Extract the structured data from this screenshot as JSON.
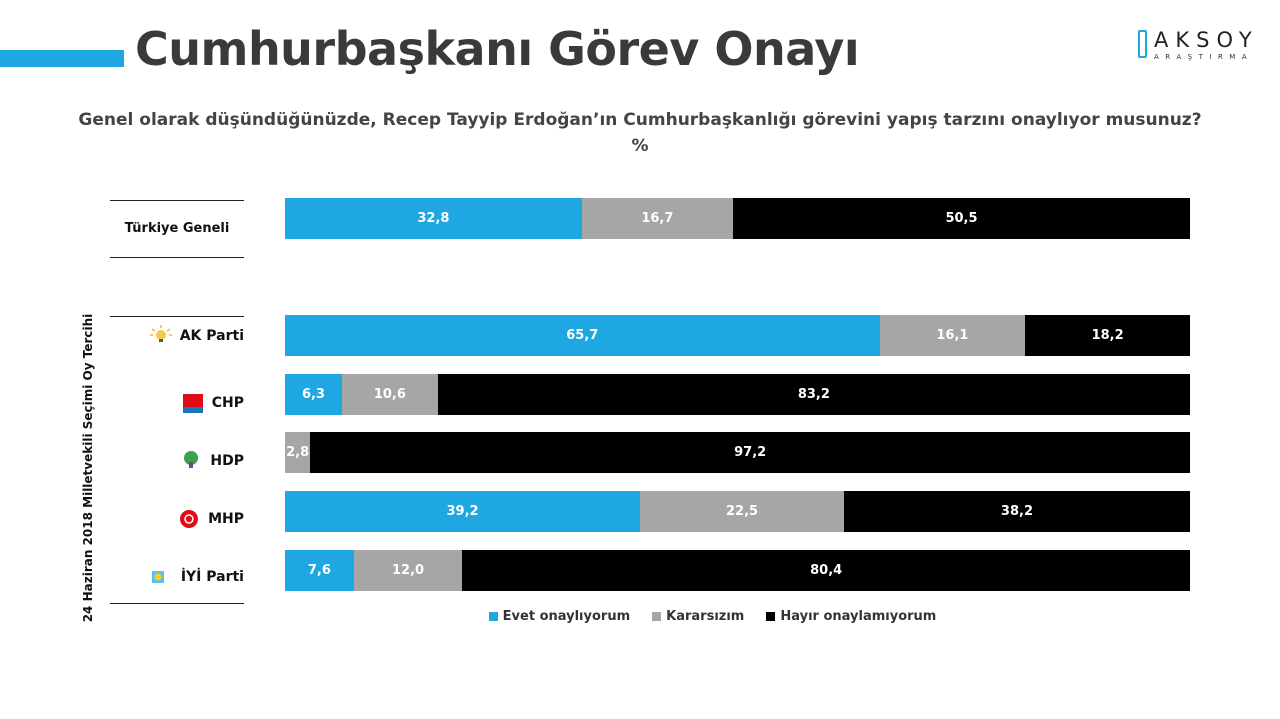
{
  "title": "Cumhurbaşkanı Görev Onayı",
  "logo": {
    "main": "AKSOY",
    "sub": "ARAŞTIRMA"
  },
  "question": "Genel olarak düşündüğünüzde, Recep Tayyip Erdoğan’ın Cumhurbaşkanlığı görevini yapış tarzını onaylıyor musunuz?",
  "unit": "%",
  "group_label": "24 Haziran 2018 Milletvekili Seçimi Oy Tercihi",
  "colors": {
    "evet": "#1ea7e1",
    "kararsiz": "#a6a6a6",
    "hayir": "#000000",
    "accent": "#1ea7e1"
  },
  "chart_data": {
    "type": "bar",
    "orientation": "horizontal",
    "stacked": true,
    "categories": [
      "Türkiye Geneli",
      "AK Parti",
      "CHP",
      "HDP",
      "MHP",
      "İYİ Parti"
    ],
    "series": [
      {
        "name": "Evet onaylıyorum",
        "values": [
          32.8,
          65.7,
          6.3,
          0,
          39.2,
          7.6
        ],
        "labels": [
          "32,8",
          "65,7",
          "6,3",
          "",
          "39,2",
          "7,6"
        ]
      },
      {
        "name": "Kararsızım",
        "values": [
          16.7,
          16.1,
          10.6,
          2.8,
          22.5,
          12.0
        ],
        "labels": [
          "16,7",
          "16,1",
          "10,6",
          "2,8",
          "22,5",
          "12,0"
        ]
      },
      {
        "name": "Hayır onaylamıyorum",
        "values": [
          50.5,
          18.2,
          83.2,
          97.2,
          38.2,
          80.4
        ],
        "labels": [
          "50,5",
          "18,2",
          "83,2",
          "97,2",
          "38,2",
          "80,4"
        ]
      }
    ],
    "xlim": [
      0,
      100
    ],
    "legend": "bottom",
    "grid": false
  },
  "party_icons": [
    "ak-parti-bulb-icon",
    "chp-six-arrows-icon",
    "hdp-tree-icon",
    "mhp-crescents-icon",
    "iyi-sun-icon"
  ]
}
